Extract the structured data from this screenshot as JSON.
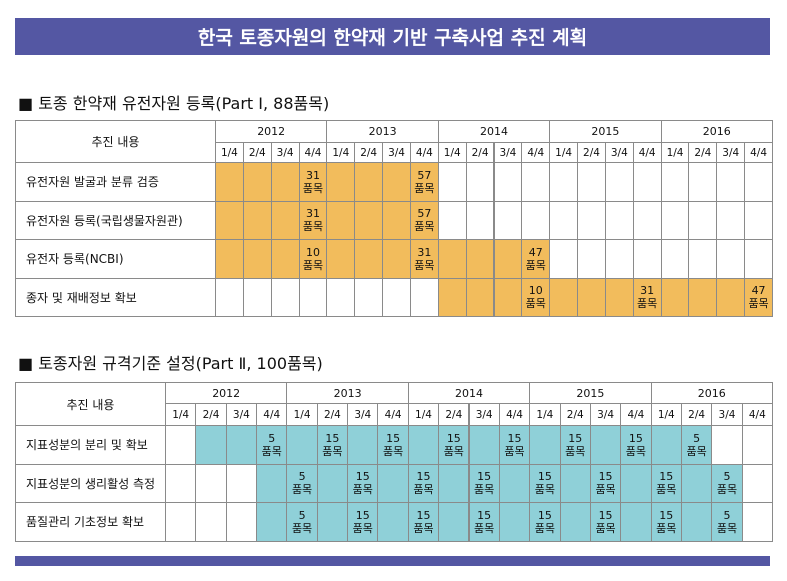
{
  "header": {
    "title": "한국 토종자원의 한약재 기반 구축사업 추진 계획"
  },
  "table1": {
    "heading": "■ 토종 한약재 유전자원 등록(Part Ⅰ, 88품목)",
    "corner": "추진 내용",
    "fill_color": "#f2bc5c",
    "years": [
      {
        "year": "2012",
        "quarters": [
          "1/4",
          "2/4",
          "3/4",
          "4/4"
        ]
      },
      {
        "year": "2013",
        "quarters": [
          "1/4",
          "2/4",
          "3/4",
          "4/4"
        ]
      },
      {
        "year": "2014",
        "quarters": [
          "1/4",
          "2/4",
          "3/4",
          "4/4"
        ]
      },
      {
        "year": "2015",
        "quarters": [
          "1/4",
          "2/4",
          "3/4",
          "4/4"
        ]
      },
      {
        "year": "2016",
        "quarters": [
          "1/4",
          "2/4",
          "3/4",
          "4/4"
        ]
      }
    ],
    "rows": [
      {
        "label": "유전자원 발굴과 분류 검증",
        "fill": [
          0,
          7
        ],
        "notes": [
          {
            "col": 3,
            "count": 31,
            "unit": "품목"
          },
          {
            "col": 7,
            "count": 57,
            "unit": "품목"
          }
        ]
      },
      {
        "label": "유전자원 등록(국립생물자원관)",
        "fill": [
          0,
          7
        ],
        "notes": [
          {
            "col": 3,
            "count": 31,
            "unit": "품목"
          },
          {
            "col": 7,
            "count": 57,
            "unit": "품목"
          }
        ]
      },
      {
        "label": "유전자 등록(NCBI)",
        "fill": [
          0,
          11
        ],
        "notes": [
          {
            "col": 3,
            "count": 10,
            "unit": "품목"
          },
          {
            "col": 7,
            "count": 31,
            "unit": "품목"
          },
          {
            "col": 11,
            "count": 47,
            "unit": "품목"
          }
        ]
      },
      {
        "label": "종자 및 재배정보 확보",
        "fill": [
          8,
          19
        ],
        "notes": [
          {
            "col": 11,
            "count": 10,
            "unit": "품목"
          },
          {
            "col": 15,
            "count": 31,
            "unit": "품목"
          },
          {
            "col": 19,
            "count": 47,
            "unit": "품목"
          }
        ]
      }
    ]
  },
  "table2": {
    "heading": "■ 토종자원 규격기준 설정(Part Ⅱ, 100품목)",
    "corner": "추진 내용",
    "fill_color": "#8fd0d8",
    "years": [
      {
        "year": "2012",
        "quarters": [
          "1/4",
          "2/4",
          "3/4",
          "4/4"
        ]
      },
      {
        "year": "2013",
        "quarters": [
          "1/4",
          "2/4",
          "3/4",
          "4/4"
        ]
      },
      {
        "year": "2014",
        "quarters": [
          "1/4",
          "2/4",
          "3/4",
          "4/4"
        ]
      },
      {
        "year": "2015",
        "quarters": [
          "1/4",
          "2/4",
          "3/4",
          "4/4"
        ]
      },
      {
        "year": "2016",
        "quarters": [
          "1/4",
          "2/4",
          "3/4",
          "4/4"
        ]
      }
    ],
    "rows": [
      {
        "label": "지표성분의 분리 및 확보",
        "fill": [
          1,
          17
        ],
        "notes": [
          {
            "col": 3,
            "count": 5,
            "unit": "품목"
          },
          {
            "col": 5,
            "count": 15,
            "unit": "품목"
          },
          {
            "col": 7,
            "count": 15,
            "unit": "품목"
          },
          {
            "col": 9,
            "count": 15,
            "unit": "품목"
          },
          {
            "col": 11,
            "count": 15,
            "unit": "품목"
          },
          {
            "col": 13,
            "count": 15,
            "unit": "품목"
          },
          {
            "col": 15,
            "count": 15,
            "unit": "품목"
          },
          {
            "col": 17,
            "count": 5,
            "unit": "품목"
          }
        ]
      },
      {
        "label": "지표성분의 생리활성 측정",
        "fill": [
          3,
          18
        ],
        "notes": [
          {
            "col": 4,
            "count": 5,
            "unit": "품목"
          },
          {
            "col": 6,
            "count": 15,
            "unit": "품목"
          },
          {
            "col": 8,
            "count": 15,
            "unit": "품목"
          },
          {
            "col": 10,
            "count": 15,
            "unit": "품목"
          },
          {
            "col": 12,
            "count": 15,
            "unit": "품목"
          },
          {
            "col": 14,
            "count": 15,
            "unit": "품목"
          },
          {
            "col": 16,
            "count": 15,
            "unit": "품목"
          },
          {
            "col": 18,
            "count": 5,
            "unit": "품목"
          }
        ]
      },
      {
        "label": "품질관리 기초정보 확보",
        "fill": [
          3,
          18
        ],
        "notes": [
          {
            "col": 4,
            "count": 5,
            "unit": "품목"
          },
          {
            "col": 6,
            "count": 15,
            "unit": "품목"
          },
          {
            "col": 8,
            "count": 15,
            "unit": "품목"
          },
          {
            "col": 10,
            "count": 15,
            "unit": "품목"
          },
          {
            "col": 12,
            "count": 15,
            "unit": "품목"
          },
          {
            "col": 14,
            "count": 15,
            "unit": "품목"
          },
          {
            "col": 16,
            "count": 15,
            "unit": "품목"
          },
          {
            "col": 18,
            "count": 5,
            "unit": "품목"
          }
        ]
      }
    ]
  }
}
